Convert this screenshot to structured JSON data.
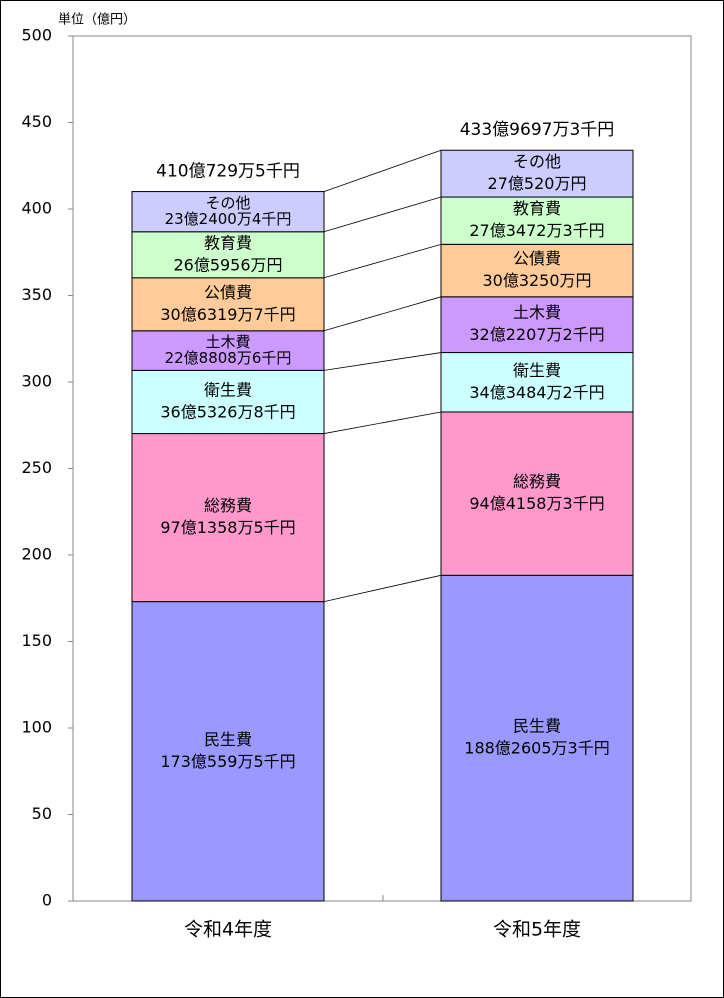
{
  "chart_data": {
    "type": "stacked_bar",
    "unit_label": "単位（億円）",
    "categories": [
      "令和4年度",
      "令和5年度"
    ],
    "ylim": [
      0,
      500
    ],
    "yticks": [
      0,
      50,
      100,
      150,
      200,
      250,
      300,
      350,
      400,
      450,
      500
    ],
    "series": [
      {
        "name": "民生費",
        "color": "#9999ff",
        "values": [
          173.05595,
          188.26053
        ],
        "value_labels": [
          "173億559万5千円",
          "188億2605万3千円"
        ]
      },
      {
        "name": "総務費",
        "color": "#ff99cc",
        "values": [
          97.13585,
          94.41583
        ],
        "value_labels": [
          "97億1358万5千円",
          "94億4158万3千円"
        ]
      },
      {
        "name": "衛生費",
        "color": "#ccffff",
        "values": [
          36.53268,
          34.34842
        ],
        "value_labels": [
          "36億5326万8千円",
          "34億3484万2千円"
        ]
      },
      {
        "name": "土木費",
        "color": "#cc99ff",
        "values": [
          22.88086,
          32.22072
        ],
        "value_labels": [
          "22億8808万6千円",
          "32億2207万2千円"
        ]
      },
      {
        "name": "公債費",
        "color": "#ffcc99",
        "values": [
          30.63197,
          30.325
        ],
        "value_labels": [
          "30億6319万7千円",
          "30億3250万円"
        ]
      },
      {
        "name": "教育費",
        "color": "#ccffcc",
        "values": [
          26.5956,
          27.34723
        ],
        "value_labels": [
          "26億5956万円",
          "27億3472万3千円"
        ]
      },
      {
        "name": "その他",
        "color": "#ccccff",
        "values": [
          23.24004,
          27.052
        ],
        "value_labels": [
          "23億2400万4千円",
          "27億520万円"
        ]
      }
    ],
    "totals": [
      410.07295,
      433.96973
    ],
    "total_labels": [
      "410億729万5千円",
      "433億9697万3千円"
    ]
  }
}
